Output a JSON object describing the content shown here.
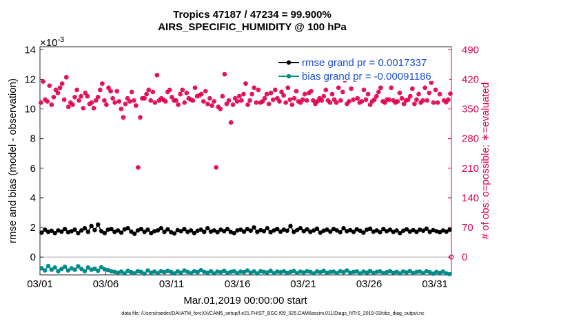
{
  "chart_data": {
    "type": "line",
    "title": "Tropics 47187 / 47234 = 99.900%",
    "subtitle": "AIRS_SPECIFIC_HUMIDITY @ 100 hPa",
    "ylabel": "rmse and bias (model - observation)",
    "y2label": "# of obs: o=possible; ∗=evaluated",
    "xlabel": "Mar.01,2019 00:00:00 start",
    "y_exponent": "×10",
    "y_exponent_power": "-3",
    "ylim": [
      -1.2,
      14.2
    ],
    "y2lim": [
      -42,
      497
    ],
    "y_ticks": [
      "0",
      "2",
      "4",
      "6",
      "8",
      "10",
      "12",
      "14"
    ],
    "y2_ticks": [
      "0",
      "70",
      "140",
      "210",
      "280",
      "350",
      "420",
      "490"
    ],
    "x_ticks": [
      "03/01",
      "03/06",
      "03/11",
      "03/16",
      "03/21",
      "03/26",
      "03/31"
    ],
    "xlim": [
      1.0,
      32.25
    ],
    "x_tick_positions": [
      1,
      6,
      11,
      16,
      21,
      26,
      31
    ],
    "legend": [
      "rmse grand pr = 0.0017337",
      "bias grand pr = -0.00091186"
    ],
    "footnote": "data file: /Users/raeder/DAI/ATM_forcXX/CAM6_setup/f.e21.FHIST_BGC.f09_025.CAM6assim.011/Diags_NTrS_2019-03/obs_diag_output.nc",
    "colors": {
      "rmse": "#000000",
      "bias": "#008b8b",
      "obs": "#e0004d",
      "legend_text": "#1a4fd6",
      "zero_line": "#c0c0c0"
    },
    "series": [
      {
        "name": "rmse",
        "axis": "left",
        "values": [
          1.65,
          1.85,
          1.7,
          1.78,
          1.62,
          1.8,
          1.72,
          1.9,
          1.68,
          1.75,
          1.85,
          1.62,
          1.8,
          1.95,
          1.7,
          2.1,
          1.82,
          2.2,
          1.75,
          1.62,
          1.85,
          1.9,
          1.7,
          1.8,
          1.65,
          1.88,
          1.95,
          1.72,
          1.58,
          1.8,
          1.9,
          1.7,
          1.85,
          1.62,
          1.75,
          1.8,
          1.95,
          1.7,
          1.88,
          1.68,
          1.6,
          1.82,
          1.75,
          1.9,
          1.7,
          1.8,
          1.62,
          1.78,
          1.85,
          1.7,
          1.95,
          1.72,
          1.8,
          1.68,
          1.85,
          1.75,
          1.9,
          1.7,
          1.62,
          1.8,
          1.85,
          1.72,
          1.9,
          1.78,
          2.0,
          1.7,
          1.82,
          1.75,
          1.95,
          1.68,
          1.8,
          1.9,
          1.72,
          1.85,
          1.78,
          2.1,
          1.7,
          1.82,
          1.95,
          1.75,
          1.88,
          1.7,
          1.8,
          1.92,
          1.65,
          1.78,
          1.85,
          1.72,
          1.9,
          1.8,
          1.68,
          1.95,
          1.75,
          1.82,
          1.7,
          1.88,
          1.78,
          1.65,
          1.85,
          1.92,
          1.72,
          1.8,
          1.68,
          1.9,
          1.75,
          1.85,
          1.7,
          1.8,
          1.62,
          1.78,
          1.88,
          1.72,
          1.82,
          1.7,
          1.85,
          1.78,
          1.92,
          1.7,
          1.82,
          1.75,
          1.68,
          1.8,
          1.72,
          1.85
        ]
      },
      {
        "name": "bias",
        "axis": "left",
        "values": [
          -0.75,
          -0.9,
          -0.6,
          -0.85,
          -0.7,
          -0.95,
          -0.8,
          -0.65,
          -0.9,
          -0.75,
          -0.85,
          -0.62,
          -0.8,
          -0.95,
          -0.7,
          -0.85,
          -0.78,
          -0.92,
          -0.68,
          -0.82,
          -0.88,
          -0.95,
          -1.0,
          -1.05,
          -0.98,
          -1.1,
          -0.92,
          -1.02,
          -1.08,
          -0.95,
          -1.0,
          -1.12,
          -0.9,
          -1.05,
          -0.98,
          -1.08,
          -0.95,
          -1.02,
          -0.92,
          -1.0,
          -1.1,
          -0.96,
          -1.05,
          -0.9,
          -1.0,
          -1.08,
          -0.95,
          -1.02,
          -0.88,
          -1.0,
          -1.05,
          -0.95,
          -1.1,
          -0.98,
          -1.02,
          -0.92,
          -1.06,
          -1.0,
          -0.95,
          -1.08,
          -0.98,
          -1.02,
          -0.9,
          -1.05,
          -0.96,
          -1.1,
          -0.95,
          -1.0,
          -1.04,
          -0.92,
          -1.08,
          -0.98,
          -1.02,
          -0.95,
          -1.06,
          -1.0,
          -0.93,
          -1.08,
          -0.98,
          -1.04,
          -0.95,
          -1.0,
          -1.1,
          -0.96,
          -1.02,
          -0.92,
          -1.06,
          -1.0,
          -0.98,
          -1.08,
          -0.95,
          -1.02,
          -0.9,
          -1.05,
          -1.0,
          -0.96,
          -1.1,
          -0.98,
          -1.04,
          -0.93,
          -1.06,
          -1.0,
          -0.96,
          -1.08,
          -1.02,
          -0.95,
          -1.05,
          -1.0,
          -1.1,
          -0.97,
          -1.03,
          -0.94,
          -1.07,
          -1.0,
          -0.98,
          -1.08,
          -0.95,
          -1.02,
          -1.12,
          -1.0,
          -1.06,
          -0.98,
          -1.1,
          -1.15
        ]
      },
      {
        "name": "obs",
        "axis": "right",
        "values": [
          365,
          415,
          372,
          368,
          405,
          360,
          378,
          395,
          388,
          400,
          410,
          372,
          425,
          355,
          365,
          360,
          378,
          395,
          370,
          380,
          352,
          388,
          380,
          362,
          365,
          352,
          370,
          378,
          395,
          410,
          370,
          360,
          400,
          392,
          375,
          365,
          392,
          368,
          350,
          330,
          362,
          375,
          368,
          390,
          370,
          358,
          212,
          330,
          375,
          375,
          385,
          395,
          370,
          390,
          365,
          430,
          370,
          375,
          372,
          368,
          390,
          395,
          378,
          370,
          370,
          360,
          385,
          395,
          365,
          388,
          375,
          372,
          370,
          400,
          380,
          382,
          385,
          368,
          392,
          362,
          375,
          358,
          368,
          212,
          355,
          350,
          380,
          432,
          362,
          370,
          318,
          360,
          375,
          368,
          380,
          370,
          385,
          410,
          360,
          370,
          385,
          400,
          365,
          395,
          365,
          368,
          375,
          385,
          362,
          388,
          372,
          395,
          375,
          368,
          390,
          382,
          365,
          400,
          372,
          360,
          375,
          392,
          368,
          365,
          372,
          385,
          370,
          388,
          392,
          370,
          362,
          368,
          375,
          370,
          380,
          395,
          370,
          365,
          385,
          372,
          365,
          400,
          370,
          390,
          418,
          362,
          368,
          398,
          372,
          420,
          375,
          365,
          368,
          395,
          372,
          385,
          360,
          368,
          372,
          380,
          390,
          400,
          368,
          365,
          372,
          372,
          400,
          370,
          365,
          368,
          388,
          375,
          362,
          370,
          372,
          380,
          398,
          362,
          372,
          385,
          365,
          370,
          400,
          370,
          388,
          412,
          365,
          395,
          365,
          385,
          438,
          370,
          366,
          372,
          386
        ]
      }
    ]
  }
}
